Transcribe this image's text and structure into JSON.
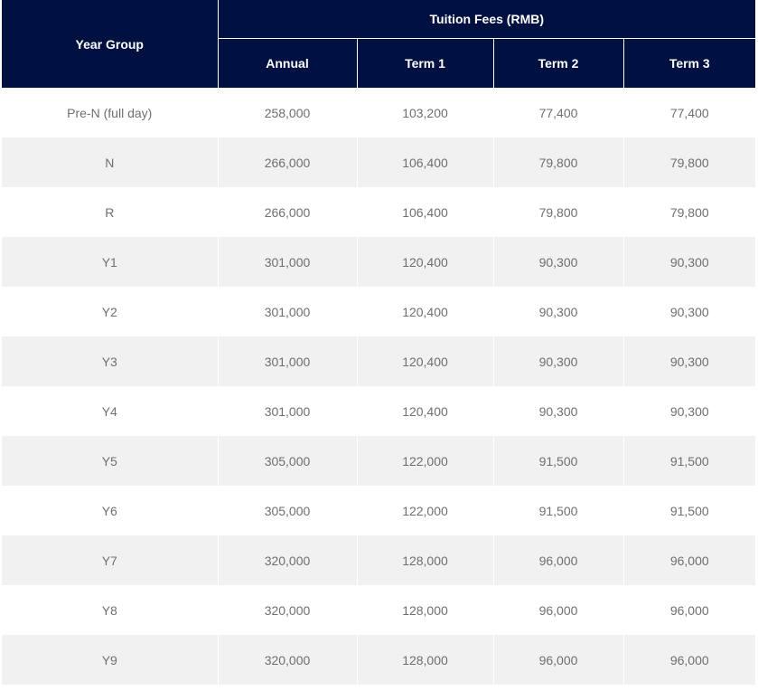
{
  "table": {
    "header": {
      "year_group": "Year Group",
      "group_title": "Tuition Fees (RMB)",
      "columns": [
        "Annual",
        "Term 1",
        "Term 2",
        "Term 3"
      ]
    },
    "rows": [
      [
        "Pre-N (full day)",
        "258,000",
        "103,200",
        "77,400",
        "77,400"
      ],
      [
        "N",
        "266,000",
        "106,400",
        "79,800",
        "79,800"
      ],
      [
        "R",
        "266,000",
        "106,400",
        "79,800",
        "79,800"
      ],
      [
        "Y1",
        "301,000",
        "120,400",
        "90,300",
        "90,300"
      ],
      [
        "Y2",
        "301,000",
        "120,400",
        "90,300",
        "90,300"
      ],
      [
        "Y3",
        "301,000",
        "120,400",
        "90,300",
        "90,300"
      ],
      [
        "Y4",
        "301,000",
        "120,400",
        "90,300",
        "90,300"
      ],
      [
        "Y5",
        "305,000",
        "122,000",
        "91,500",
        "91,500"
      ],
      [
        "Y6",
        "305,000",
        "122,000",
        "91,500",
        "91,500"
      ],
      [
        "Y7",
        "320,000",
        "128,000",
        "96,000",
        "96,000"
      ],
      [
        "Y8",
        "320,000",
        "128,000",
        "96,000",
        "96,000"
      ],
      [
        "Y9",
        "320,000",
        "128,000",
        "96,000",
        "96,000"
      ]
    ]
  },
  "colors": {
    "header_bg": "#001141",
    "header_text": "#ffffff",
    "row_alt_bg": "#f1f1f1",
    "cell_text": "#6f6f6f"
  }
}
